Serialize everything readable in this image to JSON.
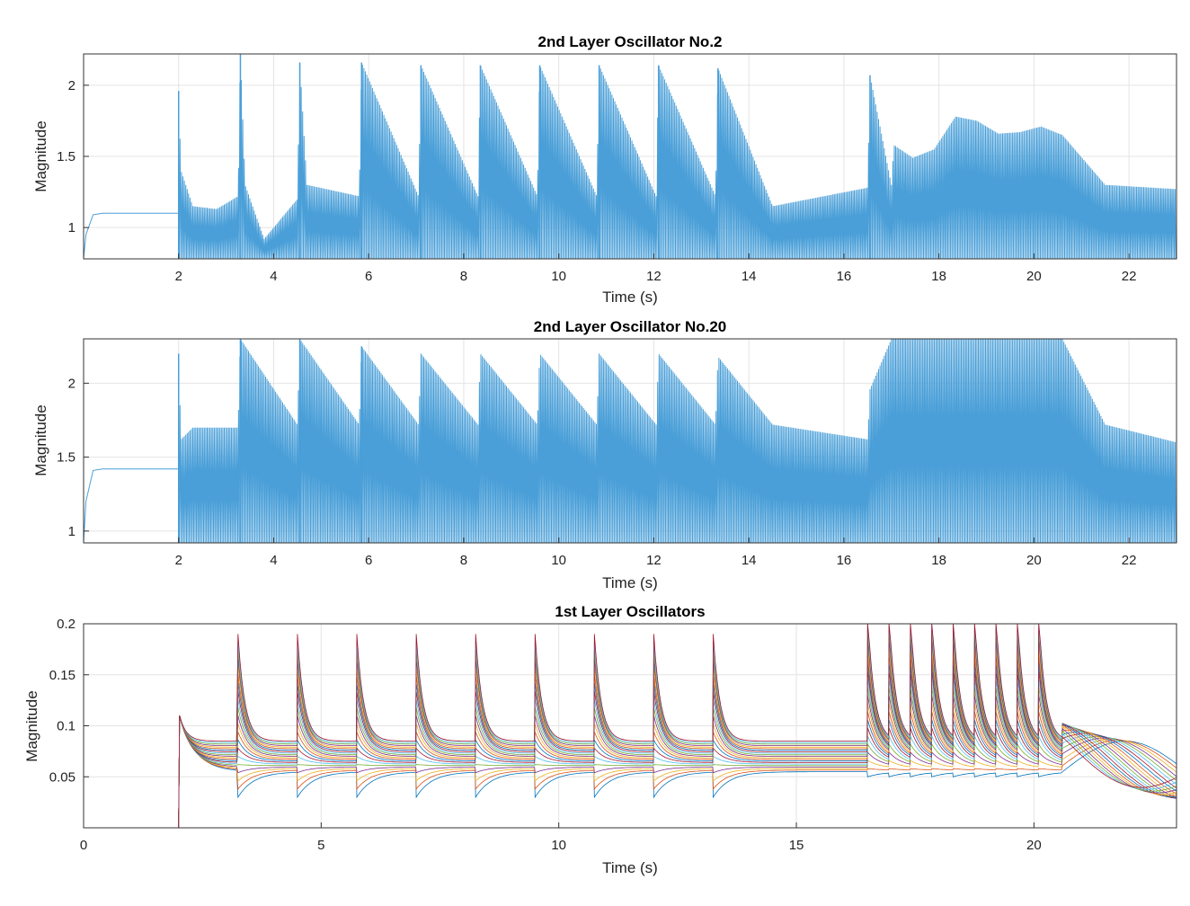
{
  "chart_data": [
    {
      "type": "line",
      "title": "2nd Layer Oscillator No.2",
      "xlabel": "Time (s)",
      "ylabel": "Magnitude",
      "xlim": [
        0,
        23
      ],
      "ylim": [
        0.78,
        2.22
      ],
      "xticks": [
        2,
        4,
        6,
        8,
        10,
        12,
        14,
        16,
        18,
        20,
        22
      ],
      "xtick_labels": [
        "2",
        "4",
        "6",
        "8",
        "10",
        "12",
        "14",
        "16",
        "18",
        "20",
        "22"
      ],
      "yticks": [
        1,
        1.5,
        2
      ],
      "ytick_labels": [
        "1",
        "1.5",
        "2"
      ],
      "grid": true,
      "series": [
        {
          "color": "#4a9fd8",
          "x": [
            0,
            0.05,
            0.2,
            0.4,
            2.0,
            2.0,
            2.05,
            2.3,
            2.8,
            3.25,
            3.3,
            3.4,
            3.8,
            4.5,
            4.55,
            4.7,
            5.8,
            5.85,
            7.05,
            7.1,
            8.3,
            8.35,
            9.55,
            9.6,
            10.8,
            10.85,
            12.05,
            12.1,
            13.3,
            13.35,
            14.5,
            16.5,
            16.55,
            17.0,
            17.05,
            17.45,
            17.9,
            18.35,
            18.8,
            19.25,
            19.7,
            20.15,
            20.6,
            21.5,
            23.0
          ],
          "y": [
            0.78,
            0.95,
            1.09,
            1.1,
            1.1,
            1.96,
            1.4,
            1.15,
            1.13,
            1.22,
            2.22,
            1.3,
            0.92,
            1.2,
            2.16,
            1.3,
            1.22,
            2.16,
            1.22,
            2.14,
            1.22,
            2.14,
            1.22,
            2.14,
            1.22,
            2.14,
            1.22,
            2.14,
            1.22,
            2.12,
            1.15,
            1.28,
            2.07,
            1.3,
            1.58,
            1.49,
            1.55,
            1.78,
            1.75,
            1.66,
            1.67,
            1.71,
            1.65,
            1.3,
            1.27
          ],
          "envelope_low": 0.78
        }
      ]
    },
    {
      "type": "line",
      "title": "2nd Layer Oscillator No.20",
      "xlabel": "Time (s)",
      "ylabel": "Magnitude",
      "xlim": [
        0,
        23
      ],
      "ylim": [
        0.92,
        2.3
      ],
      "xticks": [
        2,
        4,
        6,
        8,
        10,
        12,
        14,
        16,
        18,
        20,
        22
      ],
      "xtick_labels": [
        "2",
        "4",
        "6",
        "8",
        "10",
        "12",
        "14",
        "16",
        "18",
        "20",
        "22"
      ],
      "yticks": [
        1,
        1.5,
        2
      ],
      "ytick_labels": [
        "1",
        "1.5",
        "2"
      ],
      "grid": true,
      "series": [
        {
          "color": "#4a9fd8",
          "x": [
            0,
            0.05,
            0.2,
            0.4,
            2.0,
            2.0,
            2.05,
            2.3,
            3.25,
            3.3,
            4.5,
            4.55,
            5.8,
            5.85,
            7.05,
            7.1,
            8.3,
            8.35,
            9.55,
            9.6,
            10.8,
            10.85,
            12.05,
            12.1,
            13.3,
            13.35,
            14.5,
            16.5,
            16.55,
            17.0,
            20.6,
            21.5,
            23.0
          ],
          "y": [
            0.92,
            1.2,
            1.41,
            1.42,
            1.42,
            2.2,
            1.62,
            1.7,
            1.7,
            2.3,
            1.72,
            2.3,
            1.72,
            2.25,
            1.72,
            2.2,
            1.72,
            2.2,
            1.72,
            2.2,
            1.72,
            2.2,
            1.72,
            2.2,
            1.72,
            2.18,
            1.72,
            1.62,
            1.96,
            2.3,
            2.3,
            1.72,
            1.6
          ],
          "envelope_low": 0.92
        }
      ]
    },
    {
      "type": "line",
      "title": "1st Layer Oscillators",
      "xlabel": "Time (s)",
      "ylabel": "Magnitude",
      "xlim": [
        0,
        23
      ],
      "ylim": [
        0,
        0.2
      ],
      "xticks": [
        0,
        5,
        10,
        15,
        20
      ],
      "xtick_labels": [
        "0",
        "5",
        "10",
        "15",
        "20"
      ],
      "yticks": [
        0.05,
        0.1,
        0.15,
        0.2
      ],
      "ytick_labels": [
        "0.05",
        "0.1",
        "0.15",
        "0.2"
      ],
      "grid": true,
      "spike_times": [
        3.25,
        4.5,
        5.75,
        7.0,
        8.25,
        9.5,
        10.75,
        12.0,
        13.25,
        16.5,
        16.95,
        17.4,
        17.85,
        18.3,
        18.75,
        19.2,
        19.65,
        20.1,
        20.6
      ],
      "series_colors": [
        "#0072BD",
        "#D95319",
        "#EDB120",
        "#7E2F8E",
        "#77AC30",
        "#4DBEEE",
        "#A2142F"
      ]
    }
  ]
}
